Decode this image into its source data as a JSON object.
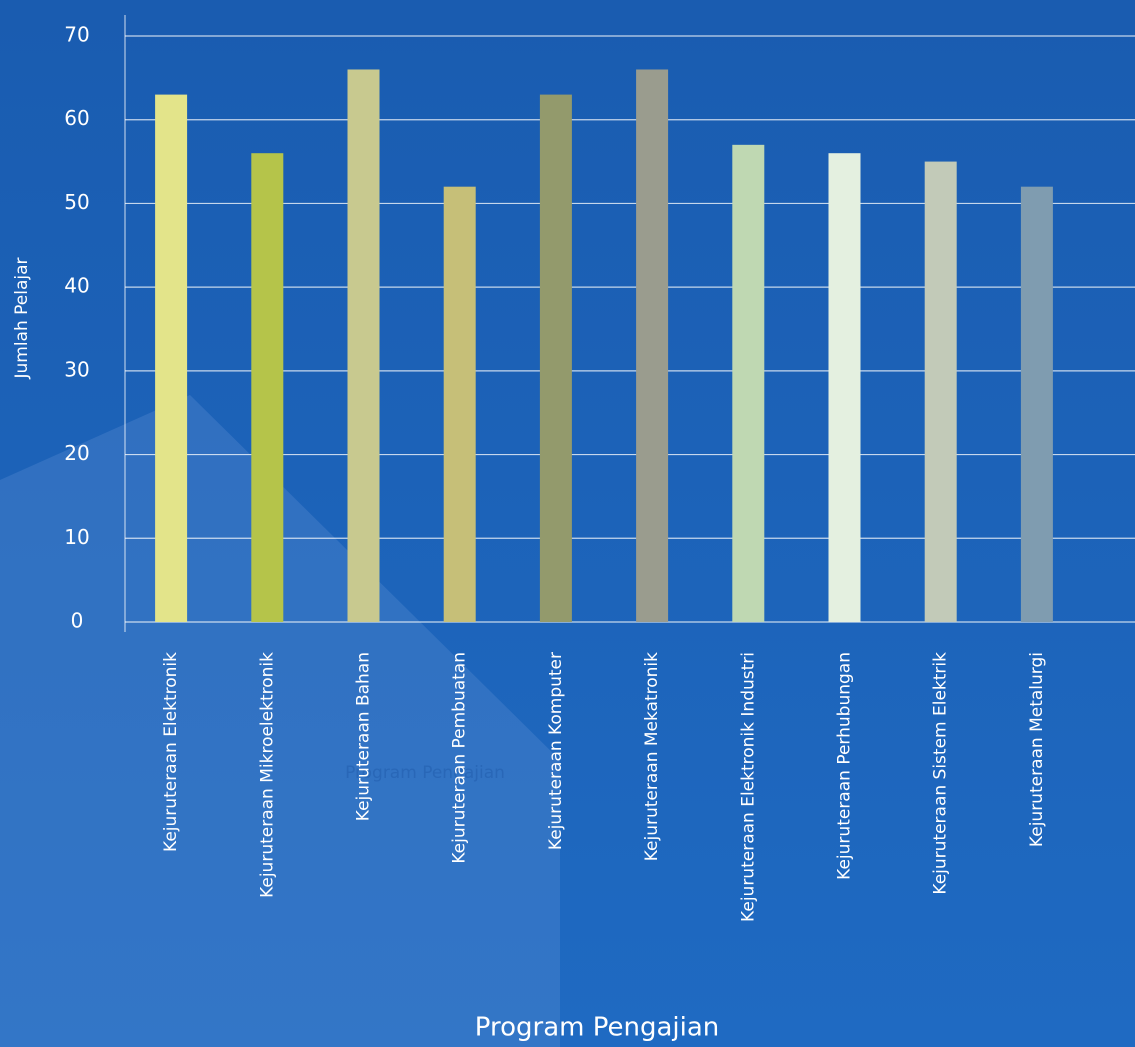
{
  "chart_data": {
    "type": "bar",
    "x_label": "Program Pengajian",
    "y_label": "Jumlah Pelajar",
    "annotations": [
      "Program Pengajian"
    ],
    "categories": [
      "Kejuruteraan Elektronik",
      "Kejuruteraan Mikroelektronik",
      "Kejuruteraan Bahan",
      "Kejuruteraan Pembuatan",
      "Kejuruteraan Komputer",
      "Kejuruteraan Mekatronik",
      "Kejuruteraan Elektronik Industri",
      "Kejuruteraan Perhubungan",
      "Kejuruteraan Sistem Elektrik",
      "Kejuruteraan Metalurgi"
    ],
    "values": [
      63,
      56,
      66,
      52,
      63,
      66,
      57,
      56,
      55,
      52
    ],
    "colors": [
      "#e3e48a",
      "#b5c44a",
      "#c8c98f",
      "#c6bf78",
      "#939a6c",
      "#9a9c8e",
      "#bfd8b2",
      "#e4f0e0",
      "#c2cab8",
      "#7f9cb0"
    ],
    "ylim": [
      0,
      70
    ],
    "yticks": [
      0,
      10,
      20,
      30,
      40,
      50,
      60,
      70
    ],
    "grid": true
  }
}
